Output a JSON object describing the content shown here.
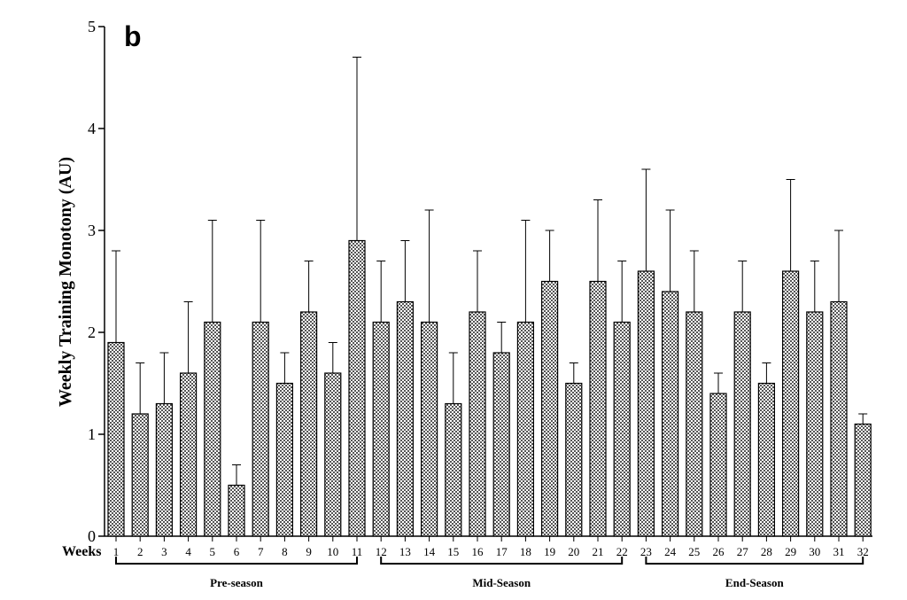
{
  "chart_data": {
    "type": "bar",
    "panel_label": "b",
    "ylabel": "Weekly Training Monotony (AU)",
    "xlabel": "Weeks",
    "ylim": [
      0,
      5
    ],
    "yticks": [
      "0",
      "1",
      "2",
      "3",
      "4",
      "5"
    ],
    "categories": [
      "1",
      "2",
      "3",
      "4",
      "5",
      "6",
      "7",
      "8",
      "9",
      "10",
      "11",
      "12",
      "13",
      "14",
      "15",
      "16",
      "17",
      "18",
      "19",
      "20",
      "21",
      "22",
      "23",
      "24",
      "25",
      "26",
      "27",
      "28",
      "29",
      "30",
      "31",
      "32"
    ],
    "values": [
      1.9,
      1.2,
      1.3,
      1.6,
      2.1,
      0.5,
      2.1,
      1.5,
      2.2,
      1.6,
      2.9,
      2.1,
      2.3,
      2.1,
      1.3,
      2.2,
      1.8,
      2.1,
      2.5,
      1.5,
      2.5,
      2.1,
      2.6,
      2.4,
      2.2,
      1.4,
      2.2,
      1.5,
      2.6,
      2.2,
      2.3,
      1.1
    ],
    "error_upper": [
      2.8,
      1.7,
      1.8,
      2.3,
      3.1,
      0.7,
      3.1,
      1.8,
      2.7,
      1.9,
      4.7,
      2.7,
      2.9,
      3.2,
      1.8,
      2.8,
      2.1,
      3.1,
      3.0,
      1.7,
      3.3,
      2.7,
      3.6,
      3.2,
      2.8,
      1.6,
      2.7,
      1.7,
      3.5,
      2.7,
      3.0,
      1.2
    ],
    "phases": [
      {
        "label": "Pre-season",
        "from_week": 1,
        "to_week": 11
      },
      {
        "label": "Mid-Season",
        "from_week": 12,
        "to_week": 22
      },
      {
        "label": "End-Season",
        "from_week": 23,
        "to_week": 32
      }
    ],
    "bar_pattern": "checkerboard-gray",
    "grid": false
  }
}
